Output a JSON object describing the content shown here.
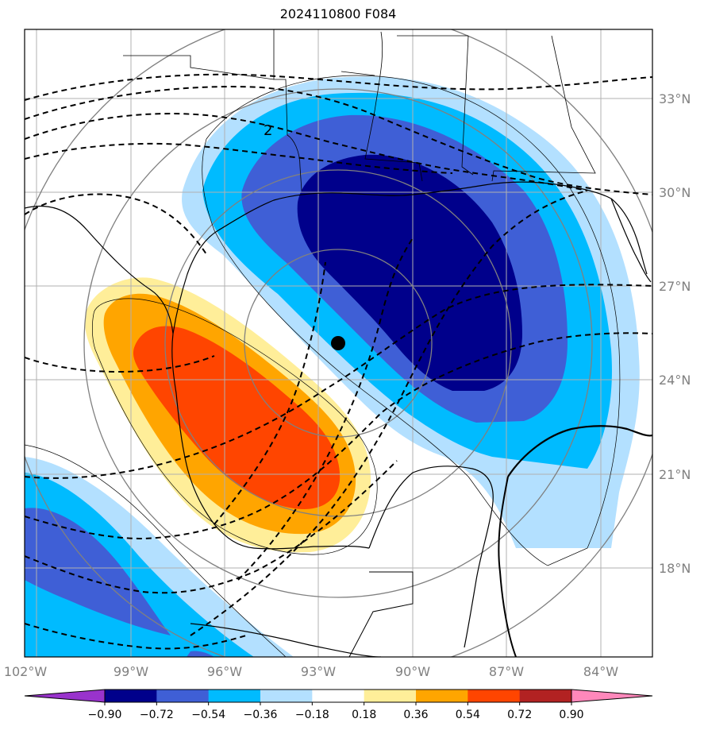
{
  "title": "2024110800 F084",
  "lon_labels": [
    "102°W",
    "99°W",
    "96°W",
    "93°W",
    "90°W",
    "87°W",
    "84°W"
  ],
  "lat_labels": [
    "33°N",
    "30°N",
    "27°N",
    "24°N",
    "21°N",
    "18°N"
  ],
  "contour_label": "2",
  "colorbar": {
    "tick_labels": [
      "−0.90",
      "−0.72",
      "−0.54",
      "−0.36",
      "−0.18",
      "0.18",
      "0.36",
      "0.54",
      "0.72",
      "0.90"
    ],
    "colors": [
      "#9933cc",
      "#00008b",
      "#3f5fd6",
      "#00bbff",
      "#b3e0ff",
      "#ffffff",
      "#ffee99",
      "#ffa500",
      "#ff4500",
      "#b22222",
      "#ff88bb"
    ]
  },
  "colors": {
    "dark_blue": "#00008b",
    "mid_blue": "#3f5fd6",
    "cyan": "#00bbff",
    "light_blue": "#b3e0ff",
    "yellow": "#ffee99",
    "orange": "#ffa500",
    "red_orange": "#ff4500",
    "grid": "#b0b0b0"
  }
}
